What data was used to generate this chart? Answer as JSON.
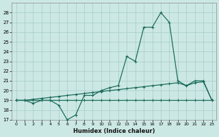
{
  "xlabel": "Humidex (Indice chaleur)",
  "background_color": "#cce8e4",
  "grid_color": "#aacfcb",
  "line_color": "#1a6b5a",
  "xlim": [
    -0.5,
    23.5
  ],
  "ylim": [
    17,
    29
  ],
  "yticks": [
    17,
    18,
    19,
    20,
    21,
    22,
    23,
    24,
    25,
    26,
    27,
    28
  ],
  "xticks": [
    0,
    1,
    2,
    3,
    4,
    5,
    6,
    7,
    8,
    9,
    10,
    11,
    12,
    13,
    14,
    15,
    16,
    17,
    18,
    19,
    20,
    21,
    22,
    23
  ],
  "line1_x": [
    0,
    1,
    2,
    3,
    4,
    5,
    6,
    7,
    8,
    9,
    10,
    11,
    12,
    13,
    14,
    15,
    16,
    17,
    18,
    19,
    20,
    21,
    22,
    23
  ],
  "line1_y": [
    19.0,
    19.0,
    19.0,
    19.0,
    19.0,
    19.0,
    19.0,
    19.0,
    19.0,
    19.0,
    19.0,
    19.0,
    19.0,
    19.0,
    19.0,
    19.0,
    19.0,
    19.0,
    19.0,
    19.0,
    19.0,
    19.0,
    19.0,
    19.0
  ],
  "line2_x": [
    0,
    1,
    2,
    3,
    4,
    5,
    6,
    7,
    8,
    9,
    10,
    11,
    12,
    13,
    14,
    15,
    16,
    17,
    18,
    19,
    20,
    21,
    22,
    23
  ],
  "line2_y": [
    19.0,
    19.0,
    18.7,
    19.0,
    19.0,
    18.5,
    17.0,
    17.5,
    19.5,
    19.5,
    20.0,
    20.3,
    20.5,
    23.5,
    23.0,
    26.5,
    26.5,
    28.0,
    27.0,
    21.0,
    20.5,
    21.0,
    21.0,
    19.0
  ],
  "line3_x": [
    0,
    1,
    2,
    3,
    4,
    5,
    6,
    7,
    8,
    9,
    10,
    11,
    12,
    13,
    14,
    15,
    16,
    17,
    18,
    19,
    20,
    21,
    22,
    23
  ],
  "line3_y": [
    19.0,
    19.0,
    19.1,
    19.2,
    19.3,
    19.4,
    19.5,
    19.6,
    19.7,
    19.8,
    19.9,
    20.0,
    20.1,
    20.2,
    20.3,
    20.4,
    20.5,
    20.6,
    20.7,
    20.8,
    20.5,
    20.8,
    20.9,
    19.0
  ]
}
